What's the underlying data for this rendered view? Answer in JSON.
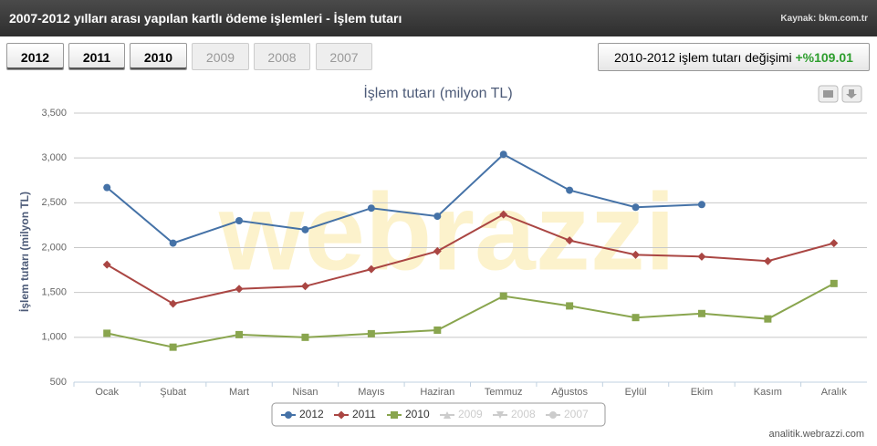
{
  "header": {
    "title": "2007-2012 yılları arası yapılan kartlı ödeme işlemleri - İşlem tutarı",
    "source": "Kaynak: bkm.com.tr"
  },
  "buttons": [
    {
      "label": "2012",
      "active": true
    },
    {
      "label": "2011",
      "active": true
    },
    {
      "label": "2010",
      "active": true
    },
    {
      "label": "2009",
      "active": false
    },
    {
      "label": "2008",
      "active": false
    },
    {
      "label": "2007",
      "active": false
    }
  ],
  "change": {
    "label": "2010-2012 işlem tutarı değişimi",
    "value_label": "+%109.01"
  },
  "chart_data": {
    "type": "line",
    "title": "İşlem tutarı (milyon TL)",
    "y_label": "İşlem tutarı (milyon TL)",
    "watermark": "webrazzi",
    "categories": [
      "Ocak",
      "Şubat",
      "Mart",
      "Nisan",
      "Mayıs",
      "Haziran",
      "Temmuz",
      "Ağustos",
      "Eylül",
      "Ekim",
      "Kasım",
      "Aralık"
    ],
    "series": [
      {
        "name": "2012",
        "color": "#4572a7",
        "marker": "circle",
        "values": [
          2670,
          2050,
          2300,
          2200,
          2440,
          2350,
          3040,
          2640,
          2450,
          2480,
          null,
          null
        ]
      },
      {
        "name": "2011",
        "color": "#aa4643",
        "marker": "diamond",
        "values": [
          1810,
          1375,
          1540,
          1570,
          1760,
          1960,
          2370,
          2080,
          1920,
          1900,
          1850,
          2050
        ]
      },
      {
        "name": "2010",
        "color": "#89a54e",
        "marker": "square",
        "values": [
          1045,
          890,
          1030,
          1000,
          1040,
          1080,
          1460,
          1350,
          1220,
          1265,
          1205,
          1600
        ]
      },
      {
        "name": "2009",
        "color": "#cccccc",
        "marker": "triangle",
        "hidden": true
      },
      {
        "name": "2008",
        "color": "#cccccc",
        "marker": "triangle-down",
        "hidden": true
      },
      {
        "name": "2007",
        "color": "#cccccc",
        "marker": "circle",
        "hidden": true
      }
    ],
    "ylim": [
      500,
      3500
    ],
    "yticks": [
      500,
      {
        "value": 1000,
        "label": "1,000"
      },
      {
        "value": 1500,
        "label": "1,500"
      },
      {
        "value": 2000,
        "label": "2,000"
      },
      {
        "value": 2500,
        "label": "2,500"
      },
      {
        "value": 3000,
        "label": "3,000"
      },
      {
        "value": 3500,
        "label": "3,500"
      }
    ],
    "grid": true
  },
  "footer": "analitik.webrazzi.com"
}
